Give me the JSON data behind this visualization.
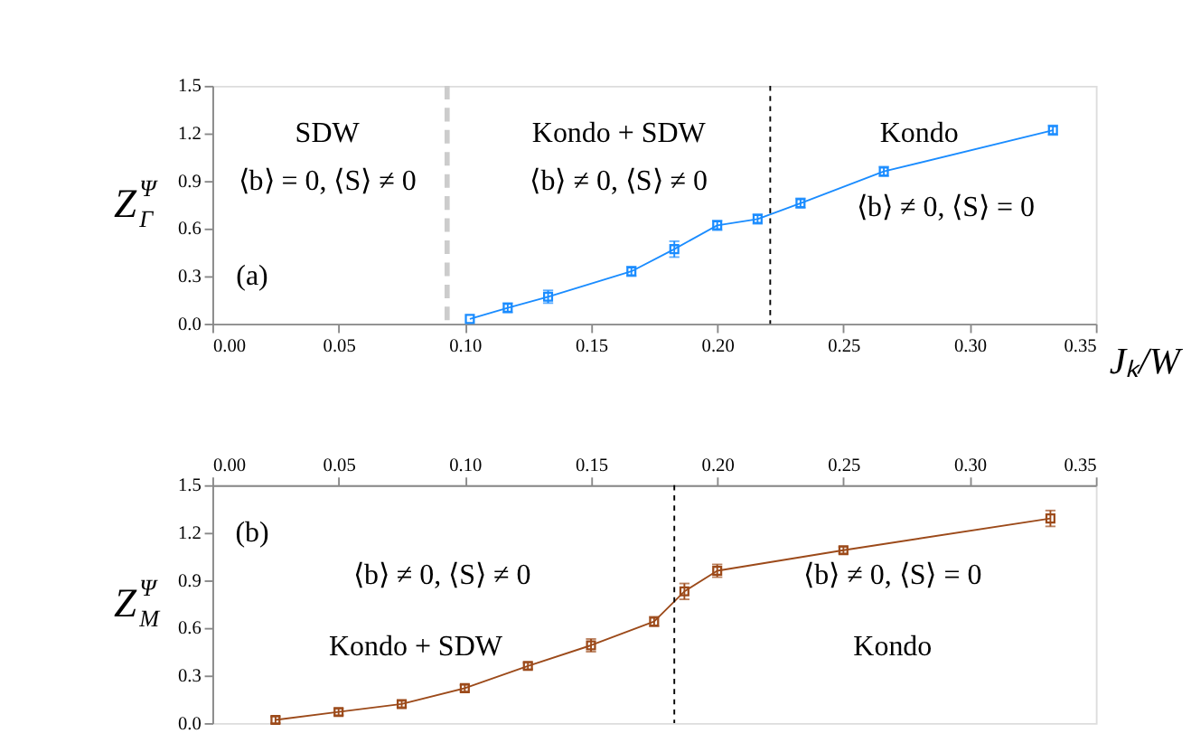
{
  "chart_data": [
    {
      "type": "line",
      "ylabel": "Z$^{Ψ}$$_{Γ}$",
      "xlabel": "Jₖ/W",
      "marker": "square",
      "line_style": "solid",
      "grid": false,
      "x": [
        0.102,
        0.117,
        0.133,
        0.166,
        0.183,
        0.2,
        0.216,
        0.233,
        0.266,
        0.333
      ],
      "series": [
        {
          "color": "#1a8cff",
          "values": [
            0.03,
            0.1,
            0.17,
            0.33,
            0.47,
            0.62,
            0.66,
            0.76,
            0.96,
            1.22
          ],
          "errors": [
            null,
            0.03,
            0.04,
            0.03,
            0.05,
            0.03,
            0.03,
            0.03,
            0.03,
            0.03
          ]
        }
      ],
      "xlim": [
        0,
        0.35
      ],
      "ylim": [
        0,
        1.5
      ],
      "xticks": [
        {
          "value": 0,
          "label": "0.00"
        },
        0.05,
        {
          "value": 0.1,
          "label": "0.10"
        },
        0.15,
        {
          "value": 0.2,
          "label": "0.20"
        },
        0.25,
        {
          "value": 0.3,
          "label": "0.30"
        },
        0.35
      ],
      "yticks": [
        {
          "value": 0,
          "label": "0.0"
        },
        0.3,
        0.6,
        0.9,
        1.2,
        1.5
      ],
      "ref_lines": [
        {
          "axis": "x",
          "value": 0.093,
          "color": "#cccccc",
          "line_style": "dashed"
        },
        {
          "axis": "x",
          "value": 0.221,
          "color": "#000000",
          "line_style": "dotted"
        }
      ],
      "annotations": [
        "SDW",
        "⟨b⟩ = 0, ⟨S⟩ ≠ 0",
        "Kondo + SDW",
        "⟨b⟩ ≠ 0, ⟨S⟩ ≠ 0",
        "Kondo",
        "⟨b⟩ ≠ 0, ⟨S⟩ = 0",
        "(a)"
      ]
    },
    {
      "type": "line",
      "ylabel": "Z$^{Ψ}$$_{M}$",
      "marker": "square",
      "line_style": "solid",
      "grid": false,
      "x": [
        0.025,
        0.05,
        0.075,
        0.1,
        0.125,
        0.15,
        0.175,
        0.187,
        0.2,
        0.25,
        0.332
      ],
      "series": [
        {
          "color": "#9c4a1a",
          "values": [
            0.02,
            0.07,
            0.12,
            0.22,
            0.36,
            0.49,
            0.64,
            0.83,
            0.96,
            1.09,
            1.29
          ],
          "errors": [
            0.02,
            0.02,
            0.02,
            0.02,
            0.02,
            0.04,
            0.03,
            0.05,
            0.04,
            0.02,
            0.05
          ]
        }
      ],
      "xlim": [
        0,
        0.35
      ],
      "ylim": [
        0,
        1.5
      ],
      "xticks": [
        {
          "value": 0,
          "label": "0.00"
        },
        0.05,
        {
          "value": 0.1,
          "label": "0.10"
        },
        0.15,
        {
          "value": 0.2,
          "label": "0.20"
        },
        0.25,
        {
          "value": 0.3,
          "label": "0.30"
        },
        0.35
      ],
      "yticks": [
        {
          "value": 0,
          "label": "0.0"
        },
        0.3,
        0.6,
        0.9,
        1.2,
        1.5
      ],
      "ref_lines": [
        {
          "axis": "x",
          "value": 0.183,
          "color": "#000000",
          "line_style": "dotted"
        }
      ],
      "annotations": [
        "(b)",
        "⟨b⟩ ≠ 0, ⟨S⟩ ≠ 0",
        "Kondo + SDW",
        "⟨b⟩ ≠ 0, ⟨S⟩ = 0",
        "Kondo"
      ]
    }
  ]
}
